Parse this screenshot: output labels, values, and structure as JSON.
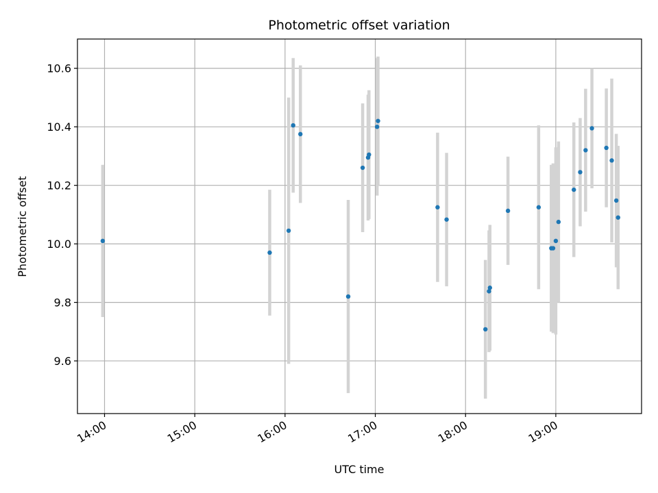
{
  "chart_data": {
    "type": "scatter",
    "title": "Photometric offset variation",
    "xlabel": "UTC time",
    "ylabel": "Photometric offset",
    "xlim": [
      13.7,
      19.95
    ],
    "ylim": [
      9.42,
      10.7
    ],
    "x_ticks": [
      14,
      15,
      16,
      17,
      18,
      19
    ],
    "x_tick_labels": [
      "14:00",
      "15:00",
      "16:00",
      "17:00",
      "18:00",
      "19:00"
    ],
    "y_ticks": [
      9.6,
      9.8,
      10.0,
      10.2,
      10.4,
      10.6
    ],
    "y_tick_labels": [
      "9.6",
      "9.8",
      "10.0",
      "10.2",
      "10.4",
      "10.6"
    ],
    "grid": true,
    "legend": "none",
    "colors": {
      "point": "#1f77b4",
      "errorbar": "#d3d3d3",
      "grid": "#b0b0b0"
    },
    "points": [
      {
        "x": 13.98,
        "y": 10.01,
        "err": 0.26
      },
      {
        "x": 15.83,
        "y": 9.97,
        "err": 0.215
      },
      {
        "x": 16.04,
        "y": 10.045,
        "err": 0.455
      },
      {
        "x": 16.09,
        "y": 10.405,
        "err": 0.23
      },
      {
        "x": 16.17,
        "y": 10.375,
        "err": 0.235
      },
      {
        "x": 16.7,
        "y": 9.82,
        "err": 0.33
      },
      {
        "x": 16.86,
        "y": 10.26,
        "err": 0.22
      },
      {
        "x": 16.92,
        "y": 10.295,
        "err": 0.215
      },
      {
        "x": 16.93,
        "y": 10.305,
        "err": 0.22
      },
      {
        "x": 17.02,
        "y": 10.4,
        "err": 0.235
      },
      {
        "x": 17.03,
        "y": 10.42,
        "err": 0.22
      },
      {
        "x": 17.69,
        "y": 10.125,
        "err": 0.255
      },
      {
        "x": 17.79,
        "y": 10.083,
        "err": 0.228
      },
      {
        "x": 18.22,
        "y": 9.708,
        "err": 0.237
      },
      {
        "x": 18.26,
        "y": 9.838,
        "err": 0.208
      },
      {
        "x": 18.27,
        "y": 9.85,
        "err": 0.215
      },
      {
        "x": 18.47,
        "y": 10.113,
        "err": 0.185
      },
      {
        "x": 18.81,
        "y": 10.125,
        "err": 0.28
      },
      {
        "x": 18.95,
        "y": 9.985,
        "err": 0.285
      },
      {
        "x": 18.97,
        "y": 9.985,
        "err": 0.29
      },
      {
        "x": 19.0,
        "y": 10.01,
        "err": 0.32
      },
      {
        "x": 19.03,
        "y": 10.075,
        "err": 0.275
      },
      {
        "x": 19.2,
        "y": 10.185,
        "err": 0.23
      },
      {
        "x": 19.27,
        "y": 10.245,
        "err": 0.185
      },
      {
        "x": 19.33,
        "y": 10.32,
        "err": 0.21
      },
      {
        "x": 19.4,
        "y": 10.395,
        "err": 0.205
      },
      {
        "x": 19.56,
        "y": 10.328,
        "err": 0.203
      },
      {
        "x": 19.62,
        "y": 10.285,
        "err": 0.28
      },
      {
        "x": 19.67,
        "y": 10.148,
        "err": 0.228
      },
      {
        "x": 19.69,
        "y": 10.09,
        "err": 0.245
      }
    ]
  }
}
